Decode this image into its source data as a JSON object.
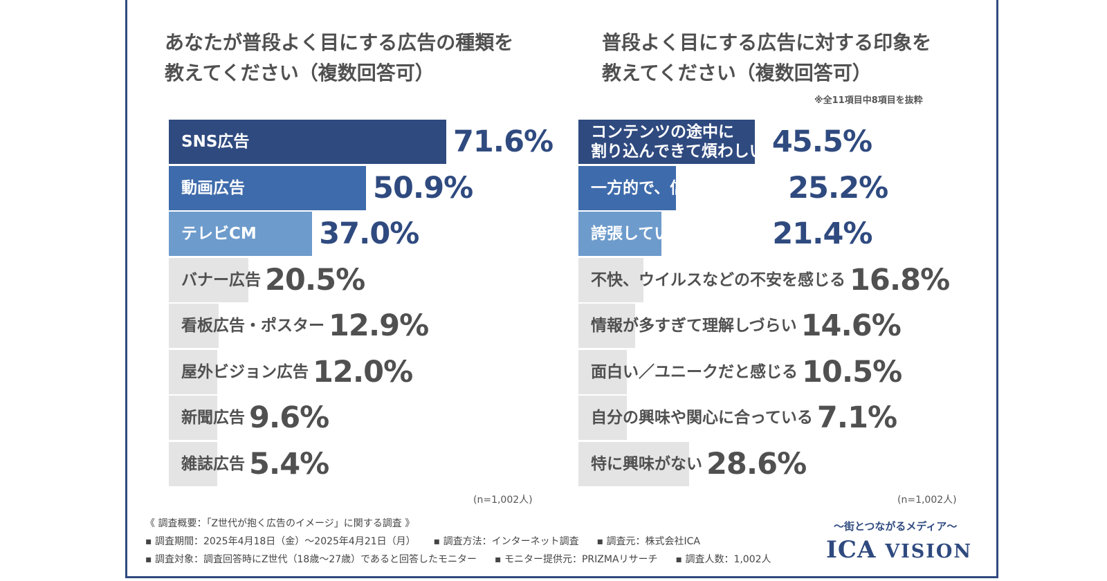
{
  "chart_data": [
    {
      "type": "bar",
      "orientation": "horizontal",
      "title": "あなたが普段よく目にする広告の種類を教えてください（複数回答可）",
      "title_lines": [
        "あなたが普段よく目にする広告の種類を",
        "教えてください（複数回答可）"
      ],
      "categories": [
        "SNS広告",
        "動画広告",
        "テレビCM",
        "バナー広告",
        "看板広告・ポスター",
        "屋外ビジョン広告",
        "新聞広告",
        "雑誌広告"
      ],
      "values": [
        71.6,
        50.9,
        37.0,
        20.5,
        12.9,
        12.0,
        9.6,
        5.4
      ],
      "value_labels": [
        "71.6%",
        "50.9%",
        "37.0%",
        "20.5%",
        "12.9%",
        "12.0%",
        "9.6%",
        "5.4%"
      ],
      "bar_colors": [
        "#2f4a7f",
        "#3e6bab",
        "#6d9bcc",
        "#e4e4e4",
        "#e4e4e4",
        "#e4e4e4",
        "#e4e4e4",
        "#e4e4e4"
      ],
      "xlim": [
        0,
        100
      ],
      "sample_note": "(n=1,002人)"
    },
    {
      "type": "bar",
      "orientation": "horizontal",
      "title": "普段よく目にする広告に対する印象を教えてください（複数回答可）",
      "title_lines": [
        "普段よく目にする広告に対する印象を",
        "教えてください（複数回答可）"
      ],
      "note": "※全11項目中8項目を抜粋",
      "categories": [
        "コンテンツの途中に割り込んできて煩わしい",
        "一方的で、信頼性が少ない",
        "誇張しているなと感じる",
        "不快、ウイルスなどの不安を感じる",
        "情報が多すぎて理解しづらい",
        "面白い／ユニークだと感じる",
        "自分の興味や関心に合っている",
        "特に興味がない"
      ],
      "category_lines": [
        [
          "コンテンツの途中に",
          "割り込んできて煩わしい"
        ],
        [
          "一方的で、信頼性が少ない"
        ],
        [
          "誇張しているなと感じる"
        ],
        [
          "不快、ウイルスなどの不安を感じる"
        ],
        [
          "情報が多すぎて理解しづらい"
        ],
        [
          "面白い／ユニークだと感じる"
        ],
        [
          "自分の興味や関心に合っている"
        ],
        [
          "特に興味がない"
        ]
      ],
      "values": [
        45.5,
        25.2,
        21.4,
        16.8,
        14.6,
        10.5,
        7.1,
        28.6
      ],
      "value_labels": [
        "45.5%",
        "25.2%",
        "21.4%",
        "16.8%",
        "14.6%",
        "10.5%",
        "7.1%",
        "28.6%"
      ],
      "bar_colors": [
        "#2f4a7f",
        "#3e6bab",
        "#6d9bcc",
        "#e4e4e4",
        "#e4e4e4",
        "#e4e4e4",
        "#e4e4e4",
        "#e4e4e4"
      ],
      "xlim": [
        0,
        100
      ],
      "sample_note": "(n=1,002人)"
    }
  ],
  "footer": {
    "overview": "《 調査概要：「Z世代が抱く広告のイメージ」に関する調査 》",
    "period": "▪ 調査期間：2025年4月18日（金）〜2025年4月21日（月）",
    "method": "▪ 調査方法：インターネット調査",
    "source": "▪ 調査元：株式会社ICA",
    "target": "▪ 調査対象：調査回答時にZ世代（18歳〜27歳）であると回答したモニター",
    "provider": "▪ モニター提供元：PRIZMAリサーチ",
    "count": "▪ 調査人数：1,002人"
  },
  "brand": {
    "tagline": "〜街とつながるメディア〜",
    "logo_main": "ICA",
    "logo_sub": "VISION"
  },
  "colors": {
    "accent": "#2f4a7f",
    "mid": "#3e6bab",
    "light": "#6d9bcc",
    "track": "#e4e4e4"
  }
}
